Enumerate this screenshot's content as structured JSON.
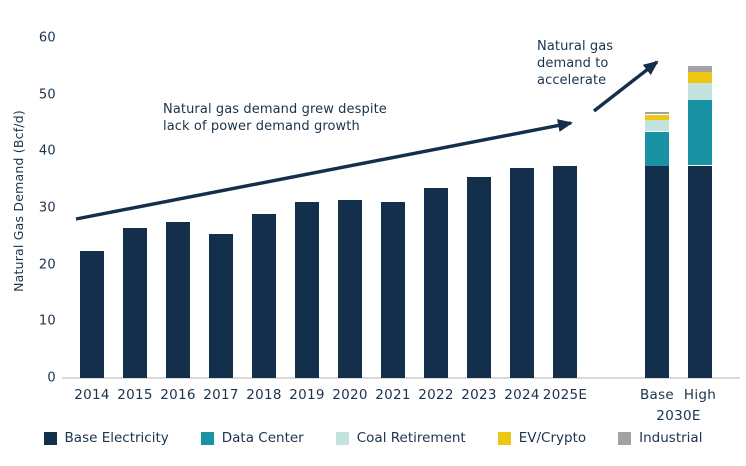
{
  "chart_data": {
    "type": "bar",
    "title": "",
    "xlabel": "",
    "ylabel": "Natural Gas Demand (Bcf/d)",
    "ylim": [
      0,
      60
    ],
    "yticks": [
      0,
      10,
      20,
      30,
      40,
      50,
      60
    ],
    "grid": false,
    "legend_position": "bottom",
    "categories": [
      "2014",
      "2015",
      "2016",
      "2017",
      "2018",
      "2019",
      "2020",
      "2021",
      "2022",
      "2023",
      "2024",
      "2025E"
    ],
    "series": [
      {
        "name": "Base Electricity",
        "values": [
          22.5,
          26.5,
          27.5,
          25.5,
          29,
          31,
          31.5,
          31,
          33.5,
          35.5,
          37,
          37.5
        ]
      }
    ],
    "scenario_group_label": "2030E",
    "stack_order": [
      "Base Electricity",
      "Data Center",
      "Coal Retirement",
      "EV/Crypto",
      "Industrial"
    ],
    "scenarios": [
      {
        "label": "Base",
        "values": [
          37.5,
          6,
          2,
          1,
          0.5
        ],
        "total": 47
      },
      {
        "label": "High",
        "values": [
          37.5,
          11.5,
          3,
          2,
          1
        ],
        "total": 55
      }
    ],
    "colors": {
      "Base Electricity": "#142f4b",
      "Data Center": "#1992a4",
      "Coal Retirement": "#c3e4de",
      "EV/Crypto": "#eec712",
      "Industrial": "#a2a2a2"
    },
    "accent_text_color": "#1b334d",
    "axis_line_color": "#d9d9d9",
    "legend": [
      {
        "label": "Base Electricity",
        "color": "#142f4b"
      },
      {
        "label": "Data Center",
        "color": "#1992a4"
      },
      {
        "label": "Coal Retirement",
        "color": "#c3e4de"
      },
      {
        "label": "EV/Crypto",
        "color": "#eec712"
      },
      {
        "label": "Industrial",
        "color": "#a2a2a2"
      }
    ],
    "annotations": {
      "growth": "Natural gas demand grew despite\nlack of power demand growth",
      "accelerate": "Natural gas\ndemand to\naccelerate"
    }
  }
}
